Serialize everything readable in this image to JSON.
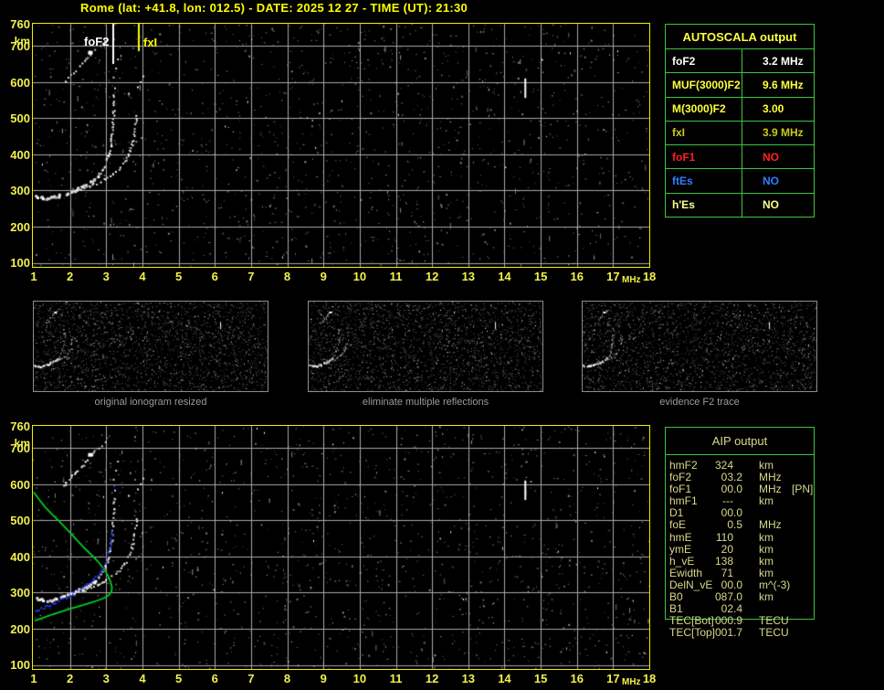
{
  "title": "Rome (lat: +41.8, lon: 012.5) - DATE: 2025 12 27 - TIME (UT): 21:30",
  "colors": {
    "accent_yellow": "#ffff00",
    "axis_yellow": "#f2f24e",
    "plot_border": "#efef00",
    "grid_gray": "#a8a8a8",
    "table_green": "#3ec43e",
    "aip_text": "#d8d88c",
    "caption_gray": "#9b9b9b",
    "trace_white": "#ffffff",
    "profile_green": "#00cc22",
    "restored_blue": "#2236ee"
  },
  "axis": {
    "x_ticks": [
      1,
      2,
      3,
      4,
      5,
      6,
      7,
      8,
      9,
      10,
      11,
      12,
      13,
      14,
      15,
      16,
      17,
      18
    ],
    "x_unit": "MHz",
    "y_ticks": [
      760,
      700,
      600,
      500,
      400,
      300,
      200,
      100
    ],
    "y_unit": "km"
  },
  "autoscala": {
    "title": "AUTOSCALA output",
    "title_color": "#ffff3c",
    "rows": [
      {
        "param": "foF2",
        "value": "3.2 MHz",
        "color": "#ffffff"
      },
      {
        "param": "MUF(3000)F2",
        "value": "9.6 MHz",
        "color": "#ffff3c"
      },
      {
        "param": "M(3000)F2",
        "value": "3.00",
        "color": "#ffff3c"
      },
      {
        "param": "fxI",
        "value": "3.9 MHz",
        "color": "#c9c91e"
      },
      {
        "param": "foF1",
        "value": "NO",
        "color": "#ff2020"
      },
      {
        "param": "ftEs",
        "value": "NO",
        "color": "#2e7eff"
      },
      {
        "param": "h'Es",
        "value": "NO",
        "color": "#ffff8c"
      }
    ]
  },
  "panels": [
    {
      "caption": "original ionogram resized"
    },
    {
      "caption": "eliminate multiple reflections"
    },
    {
      "caption": "evidence F2 trace"
    }
  ],
  "aip": {
    "title": "AIP output",
    "rows": [
      {
        "param": "hmF2",
        "int": "324",
        "frac": "",
        "unit": "km",
        "note": ""
      },
      {
        "param": "foF2",
        "int": "03",
        "frac": ".2",
        "unit": "MHz",
        "note": ""
      },
      {
        "param": "foF1",
        "int": "00",
        "frac": ".0",
        "unit": "MHz",
        "note": "[PN]"
      },
      {
        "param": "hmF1",
        "int": "---",
        "frac": "",
        "unit": "km",
        "note": ""
      },
      {
        "param": "D1",
        "int": "00",
        "frac": ".0",
        "unit": "",
        "note": ""
      },
      {
        "param": "foE",
        "int": "0",
        "frac": ".5",
        "unit": "MHz",
        "note": ""
      },
      {
        "param": "hmE",
        "int": "110",
        "frac": "",
        "unit": "km",
        "note": ""
      },
      {
        "param": "ymE",
        "int": "20",
        "frac": "",
        "unit": "km",
        "note": ""
      },
      {
        "param": "h_vE",
        "int": "138",
        "frac": "",
        "unit": "km",
        "note": ""
      },
      {
        "param": "Ewidth",
        "int": "71",
        "frac": "",
        "unit": "km",
        "note": ""
      },
      {
        "param": "DelN_vE",
        "int": "00",
        "frac": ".0",
        "unit": "m^(-3)",
        "note": ""
      },
      {
        "param": "B0",
        "int": "087",
        "frac": ".0",
        "unit": "km",
        "note": ""
      },
      {
        "param": "B1",
        "int": "02",
        "frac": ".4",
        "unit": "",
        "note": ""
      },
      {
        "param": "TEC[Bot]",
        "int": "000",
        "frac": ".9",
        "unit": "TECU",
        "note": ""
      },
      {
        "param": "TEC[Top]",
        "int": "001",
        "frac": ".7",
        "unit": "TECU",
        "note": ""
      }
    ]
  },
  "chart_data": {
    "type": "scatter",
    "xlabel": "MHz",
    "ylabel": "km",
    "x_range": [
      1,
      18
    ],
    "y_range": [
      90,
      763
    ],
    "grid": true,
    "markers": [
      {
        "label": "foF2",
        "x": 3.2,
        "color": "#ffffff",
        "drop": 44
      },
      {
        "label": "fxI",
        "x": 3.9,
        "color": "#ffff00",
        "drop": 30
      }
    ],
    "series": [
      {
        "name": "F2 O-mode echo trace",
        "style": "trace",
        "thick": 2.75,
        "on": [
          "top",
          "bottom",
          "panel"
        ],
        "points": [
          [
            1.05,
            287
          ],
          [
            1.2,
            283
          ],
          [
            1.35,
            280
          ],
          [
            1.5,
            283
          ],
          [
            1.65,
            287
          ],
          [
            1.8,
            292
          ],
          [
            1.95,
            297
          ],
          [
            2.1,
            303
          ],
          [
            2.25,
            310
          ],
          [
            2.4,
            318
          ],
          [
            2.55,
            327
          ],
          [
            2.7,
            338
          ],
          [
            2.82,
            351
          ],
          [
            2.92,
            366
          ],
          [
            3.0,
            384
          ],
          [
            3.06,
            404
          ],
          [
            3.11,
            427
          ],
          [
            3.14,
            452
          ],
          [
            3.17,
            480
          ],
          [
            3.18,
            510
          ],
          [
            3.19,
            540
          ],
          [
            3.2,
            568
          ]
        ]
      },
      {
        "name": "F2 X-mode echo trace",
        "style": "trace",
        "on": [
          "top",
          "bottom",
          "panel"
        ],
        "points": [
          [
            2.1,
            300
          ],
          [
            2.3,
            306
          ],
          [
            2.5,
            313
          ],
          [
            2.7,
            321
          ],
          [
            2.9,
            331
          ],
          [
            3.1,
            343
          ],
          [
            3.3,
            358
          ],
          [
            3.45,
            375
          ],
          [
            3.57,
            395
          ],
          [
            3.67,
            419
          ],
          [
            3.74,
            447
          ],
          [
            3.79,
            478
          ],
          [
            3.83,
            512
          ]
        ]
      },
      {
        "name": "second-hop multiple reflection",
        "style": "trace",
        "skip": 0.42,
        "on": [
          "top",
          "bottom",
          "panel"
        ],
        "points": [
          [
            1.8,
            598
          ],
          [
            1.95,
            613
          ],
          [
            2.1,
            628
          ],
          [
            2.25,
            645
          ],
          [
            2.4,
            662
          ],
          [
            2.52,
            676
          ],
          [
            2.64,
            688
          ],
          [
            2.76,
            699
          ],
          [
            2.88,
            710
          ],
          [
            3.0,
            720
          ]
        ]
      },
      {
        "name": "second-hop bright blob",
        "style": "blob",
        "on": [
          "top",
          "bottom",
          "panel"
        ],
        "points": [
          [
            2.55,
            681
          ]
        ]
      },
      {
        "name": "x-mode second-hop dots",
        "style": "points",
        "color": "#e8e8e8",
        "on": [
          "top",
          "bottom"
        ],
        "points": [
          [
            3.85,
            588
          ],
          [
            3.93,
            602
          ],
          [
            4.0,
            618
          ],
          [
            3.6,
            570
          ]
        ]
      },
      {
        "name": "spread dots above trace",
        "style": "points",
        "color": "#d0d0d0",
        "on": [
          "top",
          "bottom"
        ],
        "points": [
          [
            3.22,
            585
          ],
          [
            3.18,
            615
          ],
          [
            3.25,
            640
          ],
          [
            3.3,
            665
          ]
        ]
      },
      {
        "name": "interference streak 14.5 MHz",
        "style": "streak",
        "on": [
          "top",
          "bottom",
          "panel"
        ],
        "points": [
          [
            14.55,
            610
          ],
          [
            14.55,
            556
          ]
        ]
      },
      {
        "name": "electron density profile",
        "style": "line",
        "color": "#00cc22",
        "on": [
          "bottom"
        ],
        "points": [
          [
            1.0,
            578
          ],
          [
            1.15,
            557
          ],
          [
            1.32,
            536
          ],
          [
            1.52,
            515
          ],
          [
            1.75,
            492
          ],
          [
            1.98,
            468
          ],
          [
            2.2,
            444
          ],
          [
            2.4,
            423
          ],
          [
            2.6,
            404
          ],
          [
            2.78,
            385
          ],
          [
            2.93,
            366
          ],
          [
            3.05,
            347
          ],
          [
            3.12,
            330
          ],
          [
            3.16,
            313
          ],
          [
            3.14,
            301
          ],
          [
            3.06,
            292
          ],
          [
            2.92,
            284
          ],
          [
            2.73,
            277
          ],
          [
            2.5,
            270
          ],
          [
            2.25,
            262
          ],
          [
            2.0,
            255
          ],
          [
            1.75,
            247
          ],
          [
            1.5,
            239
          ],
          [
            1.28,
            231
          ],
          [
            1.1,
            225
          ],
          [
            1.02,
            222
          ]
        ]
      },
      {
        "name": "restored O-trace (scaled)",
        "style": "dots",
        "color": "#2236ee",
        "on": [
          "bottom"
        ],
        "points": [
          [
            1.02,
            250
          ],
          [
            1.15,
            256
          ],
          [
            1.3,
            262
          ],
          [
            1.45,
            268
          ],
          [
            1.6,
            275
          ],
          [
            1.75,
            282
          ],
          [
            1.9,
            290
          ],
          [
            2.05,
            298
          ],
          [
            2.2,
            307
          ],
          [
            2.35,
            317
          ],
          [
            2.5,
            328
          ],
          [
            2.65,
            341
          ],
          [
            2.78,
            355
          ],
          [
            2.89,
            371
          ],
          [
            2.98,
            390
          ],
          [
            3.05,
            411
          ],
          [
            3.1,
            434
          ],
          [
            3.13,
            458
          ],
          [
            3.16,
            480
          ]
        ]
      },
      {
        "name": "restored trace stray point",
        "style": "points",
        "color": "#2236ee",
        "on": [
          "bottom"
        ],
        "points": [
          [
            3.2,
            597
          ]
        ]
      }
    ]
  }
}
